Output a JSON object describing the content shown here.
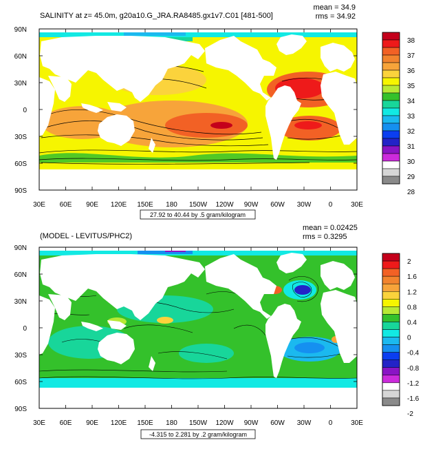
{
  "chart_data": [
    {
      "type": "heatmap",
      "title": "SALINITY at z=  45.0m, g20a10.G_JRA.RA8485.gx1v7.C01 [481-500]",
      "stats": [
        "mean = 34.9",
        "rms = 34.92"
      ],
      "contour_info": "27.92 to 40.44 by .5 gram/kilogram",
      "xtick_labels": [
        "30E",
        "60E",
        "90E",
        "120E",
        "150E",
        "180",
        "150W",
        "120W",
        "90W",
        "60W",
        "30W",
        "0",
        "30E"
      ],
      "ytick_labels": [
        "90N",
        "60N",
        "30N",
        "0",
        "30S",
        "60S",
        "90S"
      ],
      "colorbar": {
        "labels": [
          "38",
          "37",
          "36",
          "35",
          "34",
          "33",
          "32",
          "31",
          "30",
          "29",
          "28"
        ],
        "colors": [
          "#c4001b",
          "#ee1a1a",
          "#f26125",
          "#f2842e",
          "#f7a43a",
          "#fbd33c",
          "#f6f500",
          "#b7e935",
          "#34c12b",
          "#18d69a",
          "#12e9e3",
          "#1bb9ef",
          "#1590f0",
          "#0b3ef0",
          "#2323c7",
          "#8a14c5",
          "#cc2bdc",
          "#ffffff",
          "#d6d6d6",
          "#8a8a8a"
        ]
      }
    },
    {
      "type": "heatmap",
      "title": "(MODEL - LEVITUS/PHC2)",
      "stats": [
        "mean = 0.02425",
        "rms = 0.3295"
      ],
      "contour_info": "-4.315 to 2.281 by .2 gram/kilogram",
      "xtick_labels": [
        "30E",
        "60E",
        "90E",
        "120E",
        "150E",
        "180",
        "150W",
        "120W",
        "90W",
        "60W",
        "30W",
        "0",
        "30E"
      ],
      "ytick_labels": [
        "90N",
        "60N",
        "30N",
        "0",
        "30S",
        "60S",
        "90S"
      ],
      "colorbar": {
        "labels": [
          "2",
          "1.6",
          "1.2",
          "0.8",
          "0.4",
          "0",
          "-0.4",
          "-0.8",
          "-1.2",
          "-1.6",
          "-2"
        ],
        "colors": [
          "#c4001b",
          "#ee1a1a",
          "#f26125",
          "#f2842e",
          "#f7a43a",
          "#fbd33c",
          "#f6f500",
          "#b7e935",
          "#34c12b",
          "#18d69a",
          "#12e9e3",
          "#1bb9ef",
          "#1590f0",
          "#0b3ef0",
          "#2323c7",
          "#8a14c5",
          "#cc2bdc",
          "#ffffff",
          "#d6d6d6",
          "#8a8a8a"
        ]
      }
    }
  ]
}
